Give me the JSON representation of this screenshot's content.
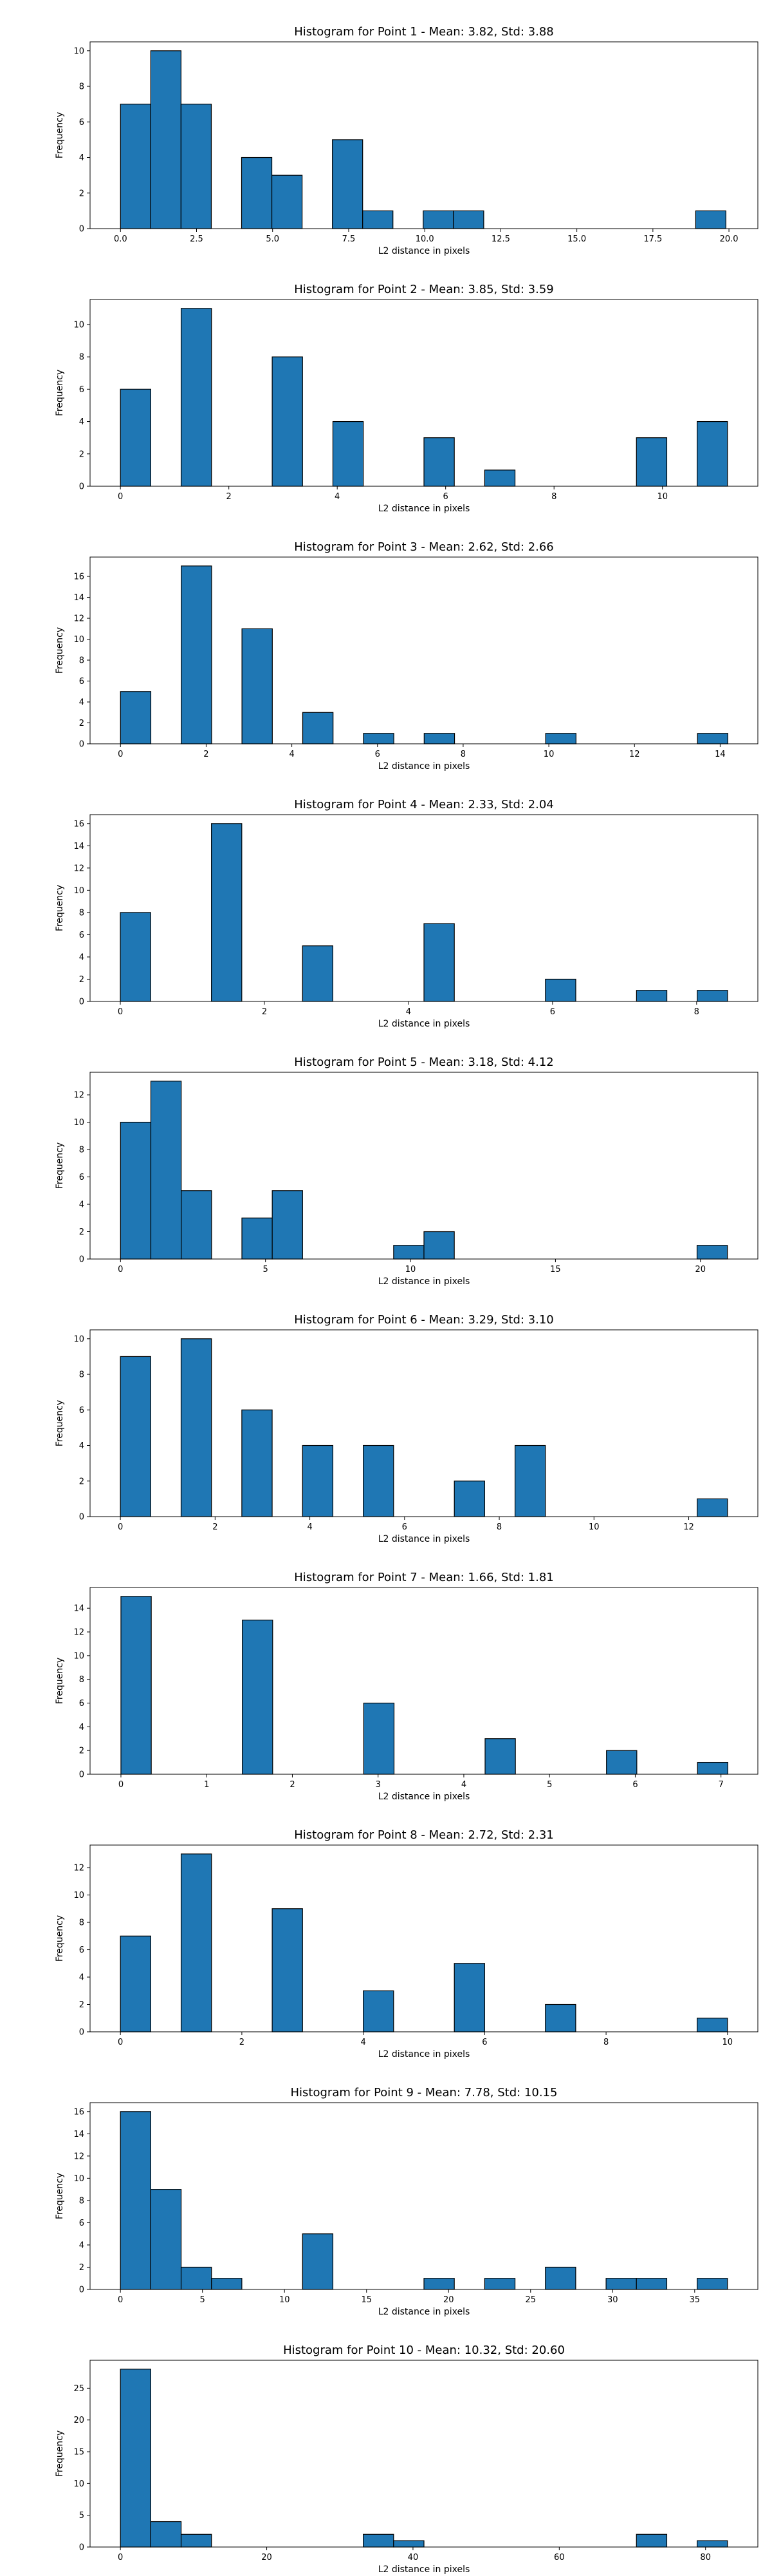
{
  "colors": {
    "bar_fill": "#1f77b4",
    "bar_edge": "#000000",
    "axes": "#000000"
  },
  "chart_data": [
    {
      "type": "bar",
      "title": "Histogram for Point 1 - Mean: 3.82, Std: 3.88",
      "xlabel": "L2 distance in pixels",
      "ylabel": "Frequency",
      "xlim": [
        -1.0,
        20.95
      ],
      "ylim": [
        0,
        10.5
      ],
      "xticks": [
        0.0,
        2.5,
        5.0,
        7.5,
        10.0,
        12.5,
        15.0,
        17.5,
        20.0
      ],
      "xtick_labels": [
        "0.0",
        "2.5",
        "5.0",
        "7.5",
        "10.0",
        "12.5",
        "15.0",
        "17.5",
        "20.0"
      ],
      "yticks": [
        0,
        2,
        4,
        6,
        8,
        10
      ],
      "grid": false,
      "bin_edges": [
        0.0,
        0.995,
        1.99,
        2.985,
        3.98,
        4.975,
        5.97,
        6.965,
        7.96,
        8.955,
        9.95,
        10.945,
        11.94,
        12.935,
        13.93,
        14.925,
        15.92,
        16.915,
        17.91,
        18.905,
        19.9
      ],
      "values": [
        7,
        10,
        7,
        0,
        4,
        3,
        0,
        5,
        1,
        0,
        1,
        1,
        0,
        0,
        0,
        0,
        0,
        0,
        0,
        1
      ]
    },
    {
      "type": "bar",
      "title": "Histogram for Point 2 - Mean: 3.85, Std: 3.59",
      "xlabel": "L2 distance in pixels",
      "ylabel": "Frequency",
      "xlim": [
        -0.56,
        11.76
      ],
      "ylim": [
        0,
        11.55
      ],
      "xticks": [
        0,
        2,
        4,
        6,
        8,
        10
      ],
      "xtick_labels": [
        "0",
        "2",
        "4",
        "6",
        "8",
        "10"
      ],
      "yticks": [
        0,
        2,
        4,
        6,
        8,
        10
      ],
      "grid": false,
      "bin_edges": [
        0.0,
        0.56,
        1.12,
        1.68,
        2.24,
        2.8,
        3.36,
        3.92,
        4.48,
        5.04,
        5.6,
        6.16,
        6.72,
        7.28,
        7.84,
        8.4,
        8.96,
        9.52,
        10.08,
        10.64,
        11.2
      ],
      "values": [
        6,
        0,
        11,
        0,
        0,
        8,
        0,
        4,
        0,
        0,
        3,
        0,
        1,
        0,
        0,
        0,
        0,
        3,
        0,
        4
      ]
    },
    {
      "type": "bar",
      "title": "Histogram for Point 3 - Mean: 2.62, Std: 2.66",
      "xlabel": "L2 distance in pixels",
      "ylabel": "Frequency",
      "xlim": [
        -0.71,
        14.88
      ],
      "ylim": [
        0,
        17.85
      ],
      "xticks": [
        0,
        2,
        4,
        6,
        8,
        10,
        12,
        14
      ],
      "xtick_labels": [
        "0",
        "2",
        "4",
        "6",
        "8",
        "10",
        "12",
        "14"
      ],
      "yticks": [
        0,
        2,
        4,
        6,
        8,
        10,
        12,
        14,
        16
      ],
      "grid": false,
      "bin_edges": [
        0.0,
        0.709,
        1.418,
        2.127,
        2.836,
        3.545,
        4.254,
        4.963,
        5.672,
        6.381,
        7.09,
        7.799,
        8.508,
        9.217,
        9.926,
        10.635,
        11.344,
        12.053,
        12.762,
        13.471,
        14.18
      ],
      "values": [
        5,
        0,
        17,
        0,
        11,
        0,
        3,
        0,
        1,
        0,
        1,
        0,
        0,
        0,
        1,
        0,
        0,
        0,
        0,
        1
      ]
    },
    {
      "type": "bar",
      "title": "Histogram for Point 4 - Mean: 2.33, Std: 2.04",
      "xlabel": "L2 distance in pixels",
      "ylabel": "Frequency",
      "xlim": [
        -0.42,
        8.85
      ],
      "ylim": [
        0,
        16.8
      ],
      "xticks": [
        0,
        2,
        4,
        6,
        8
      ],
      "xtick_labels": [
        "0",
        "2",
        "4",
        "6",
        "8"
      ],
      "yticks": [
        0,
        2,
        4,
        6,
        8,
        10,
        12,
        14,
        16
      ],
      "grid": false,
      "bin_edges": [
        0.0,
        0.4215,
        0.843,
        1.2645,
        1.686,
        2.1075,
        2.529,
        2.9505,
        3.372,
        3.7935,
        4.215,
        4.6365,
        5.058,
        5.4795,
        5.901,
        6.3225,
        6.744,
        7.1655,
        7.587,
        8.0085,
        8.43
      ],
      "values": [
        8,
        0,
        0,
        16,
        0,
        0,
        5,
        0,
        0,
        0,
        7,
        0,
        0,
        0,
        2,
        0,
        0,
        1,
        0,
        1
      ]
    },
    {
      "type": "bar",
      "title": "Histogram for Point 5 - Mean: 3.18, Std: 4.12",
      "xlabel": "L2 distance in pixels",
      "ylabel": "Frequency",
      "xlim": [
        -1.05,
        21.98
      ],
      "ylim": [
        0,
        13.65
      ],
      "xticks": [
        0,
        5,
        10,
        15,
        20
      ],
      "xtick_labels": [
        "0",
        "5",
        "10",
        "15",
        "20"
      ],
      "yticks": [
        0,
        2,
        4,
        6,
        8,
        10,
        12
      ],
      "grid": false,
      "bin_edges": [
        0.0,
        1.0465,
        2.093,
        3.1395,
        4.186,
        5.2325,
        6.279,
        7.3255,
        8.372,
        9.4185,
        10.465,
        11.5115,
        12.558,
        13.6045,
        14.651,
        15.6975,
        16.744,
        17.7905,
        18.837,
        19.8835,
        20.93
      ],
      "values": [
        10,
        13,
        5,
        0,
        3,
        5,
        0,
        0,
        0,
        1,
        2,
        0,
        0,
        0,
        0,
        0,
        0,
        0,
        0,
        1
      ]
    },
    {
      "type": "bar",
      "title": "Histogram for Point 6 - Mean: 3.29, Std: 3.10",
      "xlabel": "L2 distance in pixels",
      "ylabel": "Frequency",
      "xlim": [
        -0.64,
        13.46
      ],
      "ylim": [
        0,
        10.5
      ],
      "xticks": [
        0,
        2,
        4,
        6,
        8,
        10,
        12
      ],
      "xtick_labels": [
        "0",
        "2",
        "4",
        "6",
        "8",
        "10",
        "12"
      ],
      "yticks": [
        0,
        2,
        4,
        6,
        8,
        10
      ],
      "grid": false,
      "bin_edges": [
        0.0,
        0.641,
        1.282,
        1.923,
        2.564,
        3.205,
        3.846,
        4.487,
        5.128,
        5.769,
        6.41,
        7.051,
        7.692,
        8.333,
        8.974,
        9.615,
        10.256,
        10.897,
        11.538,
        12.179,
        12.82
      ],
      "values": [
        9,
        0,
        10,
        0,
        6,
        0,
        4,
        0,
        4,
        0,
        0,
        2,
        0,
        4,
        0,
        0,
        0,
        0,
        0,
        1
      ]
    },
    {
      "type": "bar",
      "title": "Histogram for Point 7 - Mean: 1.66, Std: 1.81",
      "xlabel": "L2 distance in pixels",
      "ylabel": "Frequency",
      "xlim": [
        -0.36,
        7.43
      ],
      "ylim": [
        0,
        15.75
      ],
      "xticks": [
        0,
        1,
        2,
        3,
        4,
        5,
        6,
        7
      ],
      "xtick_labels": [
        "0",
        "1",
        "2",
        "3",
        "4",
        "5",
        "6",
        "7"
      ],
      "yticks": [
        0,
        2,
        4,
        6,
        8,
        10,
        12,
        14
      ],
      "grid": false,
      "bin_edges": [
        0.0,
        0.354,
        0.708,
        1.062,
        1.416,
        1.77,
        2.124,
        2.478,
        2.832,
        3.186,
        3.54,
        3.894,
        4.248,
        4.602,
        4.956,
        5.31,
        5.664,
        6.018,
        6.372,
        6.726,
        7.08
      ],
      "values": [
        15,
        0,
        0,
        0,
        13,
        0,
        0,
        0,
        6,
        0,
        0,
        0,
        3,
        0,
        0,
        0,
        2,
        0,
        0,
        1
      ]
    },
    {
      "type": "bar",
      "title": "Histogram for Point 8 - Mean: 2.72, Std: 2.31",
      "xlabel": "L2 distance in pixels",
      "ylabel": "Frequency",
      "xlim": [
        -0.5,
        10.5
      ],
      "ylim": [
        0,
        13.65
      ],
      "xticks": [
        0,
        2,
        4,
        6,
        8,
        10
      ],
      "xtick_labels": [
        "0",
        "2",
        "4",
        "6",
        "8",
        "10"
      ],
      "yticks": [
        0,
        2,
        4,
        6,
        8,
        10,
        12
      ],
      "grid": false,
      "bin_edges": [
        0.0,
        0.5,
        1.0,
        1.5,
        2.0,
        2.5,
        3.0,
        3.5,
        4.0,
        4.5,
        5.0,
        5.5,
        6.0,
        6.5,
        7.0,
        7.5,
        8.0,
        8.5,
        9.0,
        9.5,
        10.0
      ],
      "values": [
        7,
        0,
        13,
        0,
        0,
        9,
        0,
        0,
        3,
        0,
        0,
        5,
        0,
        0,
        2,
        0,
        0,
        0,
        0,
        1
      ]
    },
    {
      "type": "bar",
      "title": "Histogram for Point 9 - Mean: 7.78, Std: 10.15",
      "xlabel": "L2 distance in pixels",
      "ylabel": "Frequency",
      "xlim": [
        -1.85,
        38.85
      ],
      "ylim": [
        0,
        16.8
      ],
      "xticks": [
        0,
        5,
        10,
        15,
        20,
        25,
        30,
        35
      ],
      "xtick_labels": [
        "0",
        "5",
        "10",
        "15",
        "20",
        "25",
        "30",
        "35"
      ],
      "yticks": [
        0,
        2,
        4,
        6,
        8,
        10,
        12,
        14,
        16
      ],
      "grid": false,
      "bin_edges": [
        0.0,
        1.85,
        3.7,
        5.55,
        7.4,
        9.25,
        11.1,
        12.95,
        14.8,
        16.65,
        18.5,
        20.35,
        22.2,
        24.05,
        25.9,
        27.75,
        29.6,
        31.45,
        33.3,
        35.15,
        37.0
      ],
      "values": [
        16,
        9,
        2,
        1,
        0,
        0,
        5,
        0,
        0,
        0,
        1,
        0,
        1,
        0,
        2,
        0,
        1,
        1,
        0,
        1
      ]
    },
    {
      "type": "bar",
      "title": "Histogram for Point 10 - Mean: 10.32, Std: 20.60",
      "xlabel": "L2 distance in pixels",
      "ylabel": "Frequency",
      "xlim": [
        -4.15,
        87.15
      ],
      "ylim": [
        0,
        29.4
      ],
      "xticks": [
        0,
        20,
        40,
        60,
        80
      ],
      "xtick_labels": [
        "0",
        "20",
        "40",
        "60",
        "80"
      ],
      "yticks": [
        0,
        5,
        10,
        15,
        20,
        25
      ],
      "grid": false,
      "bin_edges": [
        0.0,
        4.15,
        8.3,
        12.45,
        16.6,
        20.75,
        24.9,
        29.05,
        33.2,
        37.35,
        41.5,
        45.65,
        49.8,
        53.95,
        58.1,
        62.25,
        66.4,
        70.55,
        74.7,
        78.85,
        83.0
      ],
      "values": [
        28,
        4,
        2,
        0,
        0,
        0,
        0,
        0,
        2,
        1,
        0,
        0,
        0,
        0,
        0,
        0,
        0,
        2,
        0,
        1
      ]
    }
  ]
}
